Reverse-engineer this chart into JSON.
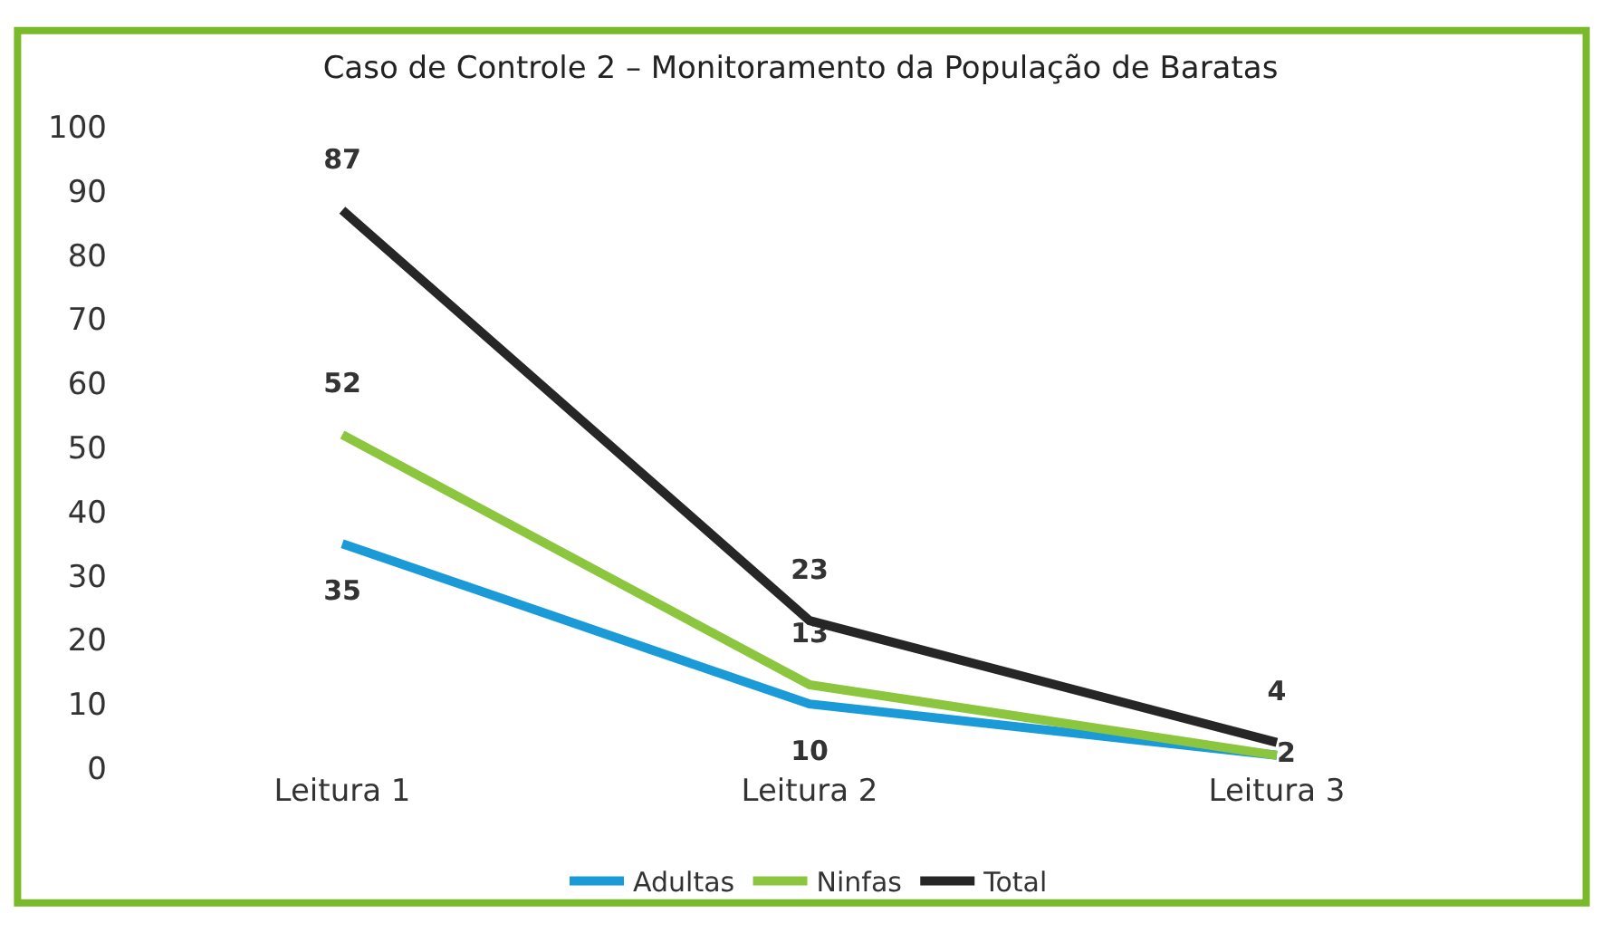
{
  "chart_data": {
    "type": "line",
    "title": "Caso de Controle 2 – Monitoramento da População de Baratas",
    "categories": [
      "Leitura 1",
      "Leitura 2",
      "Leitura 3"
    ],
    "series": [
      {
        "name": "Adultas",
        "color": "#1a9ad6",
        "values": [
          35,
          10,
          2
        ],
        "value_labels": [
          "35",
          "10",
          "2"
        ]
      },
      {
        "name": "Ninfas",
        "color": "#8cc63f",
        "values": [
          52,
          13,
          2
        ],
        "value_labels": [
          "52",
          "13",
          null
        ]
      },
      {
        "name": "Total",
        "color": "#262626",
        "values": [
          87,
          23,
          4
        ],
        "value_labels": [
          "87",
          "23",
          "4"
        ]
      }
    ],
    "ylim": [
      0,
      100
    ],
    "yticks": [
      0,
      10,
      20,
      30,
      40,
      50,
      60,
      70,
      80,
      90,
      100
    ],
    "legend": "bottom",
    "marker": "none",
    "line_style": "solid"
  }
}
